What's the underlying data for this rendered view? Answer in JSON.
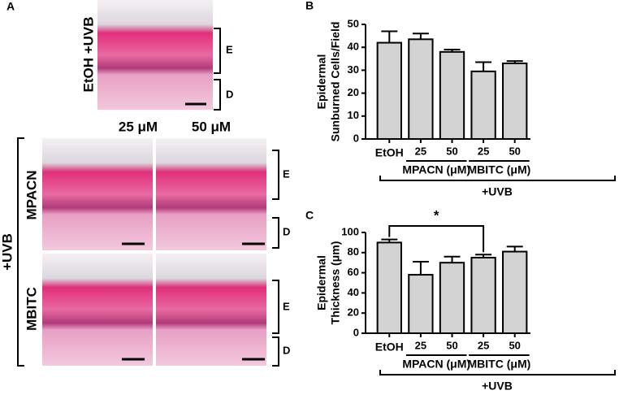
{
  "panel_a": {
    "letter": "A",
    "top_label": "EtOH +UVB",
    "col_labels": [
      "25 μM",
      "50 μM"
    ],
    "row_labels": [
      "MPACN",
      "MBITC"
    ],
    "side_label": "+UVB",
    "e_label": "E",
    "d_label": "D"
  },
  "chart_data": [
    {
      "type": "bar",
      "panel": "B",
      "y_label": [
        "Epidermal",
        "Sunburned Cells/Field"
      ],
      "categories": [
        "EtOH",
        "25",
        "50",
        "25",
        "50"
      ],
      "groups": [
        "MPACN (μM)",
        "MBITC (μM)"
      ],
      "treatment": "+UVB",
      "values": [
        42,
        43.5,
        38,
        29.5,
        33
      ],
      "errors": [
        5,
        2.5,
        1,
        4,
        1
      ],
      "color": "#d3d3d3",
      "ylim": [
        0,
        50
      ],
      "yticks": [
        0,
        10,
        20,
        30,
        40,
        50
      ]
    },
    {
      "type": "bar",
      "panel": "C",
      "y_label": [
        "Epidermal",
        "Thickness (μm)"
      ],
      "categories": [
        "EtOH",
        "25",
        "50",
        "25",
        "50"
      ],
      "groups": [
        "MPACN (μM)",
        "MBITC (μM)"
      ],
      "treatment": "+UVB",
      "values": [
        90,
        58,
        70,
        75,
        81
      ],
      "errors": [
        3,
        13,
        6,
        3,
        5
      ],
      "color": "#d3d3d3",
      "ylim": [
        0,
        100
      ],
      "yticks": [
        0,
        20,
        40,
        60,
        80,
        100
      ],
      "annotation": "*"
    }
  ]
}
